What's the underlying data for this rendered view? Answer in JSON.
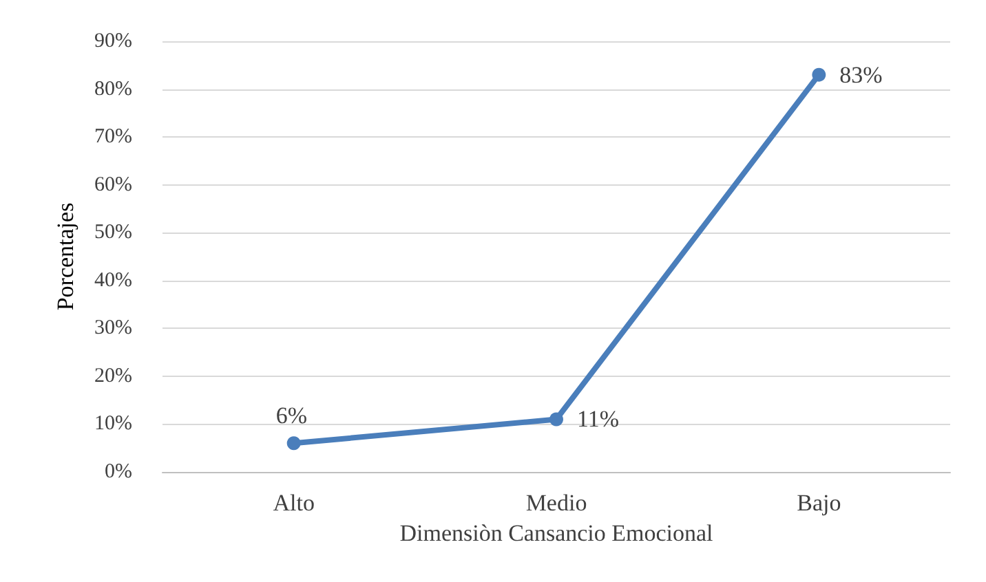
{
  "chart_data": {
    "type": "line",
    "xlabel": "Dimensiòn Cansancio Emocional",
    "ylabel": "Porcentajes",
    "categories": [
      "Alto",
      "Medio",
      "Bajo"
    ],
    "series": [
      {
        "color": "#4a7ebb",
        "values": [
          6,
          11,
          83
        ],
        "value_labels": [
          "6%",
          "11%",
          "83%"
        ]
      }
    ],
    "ylim": [
      0,
      90
    ],
    "yticks": [
      {
        "value": 0,
        "label": "0%"
      },
      {
        "value": 10,
        "label": "10%"
      },
      {
        "value": 20,
        "label": "20%"
      },
      {
        "value": 30,
        "label": "30%"
      },
      {
        "value": 40,
        "label": "40%"
      },
      {
        "value": 50,
        "label": "50%"
      },
      {
        "value": 60,
        "label": "60%"
      },
      {
        "value": 70,
        "label": "70%"
      },
      {
        "value": 80,
        "label": "80%"
      },
      {
        "value": 90,
        "label": "90%"
      }
    ],
    "grid": "y",
    "marker": "circle",
    "line_style": "solid"
  }
}
